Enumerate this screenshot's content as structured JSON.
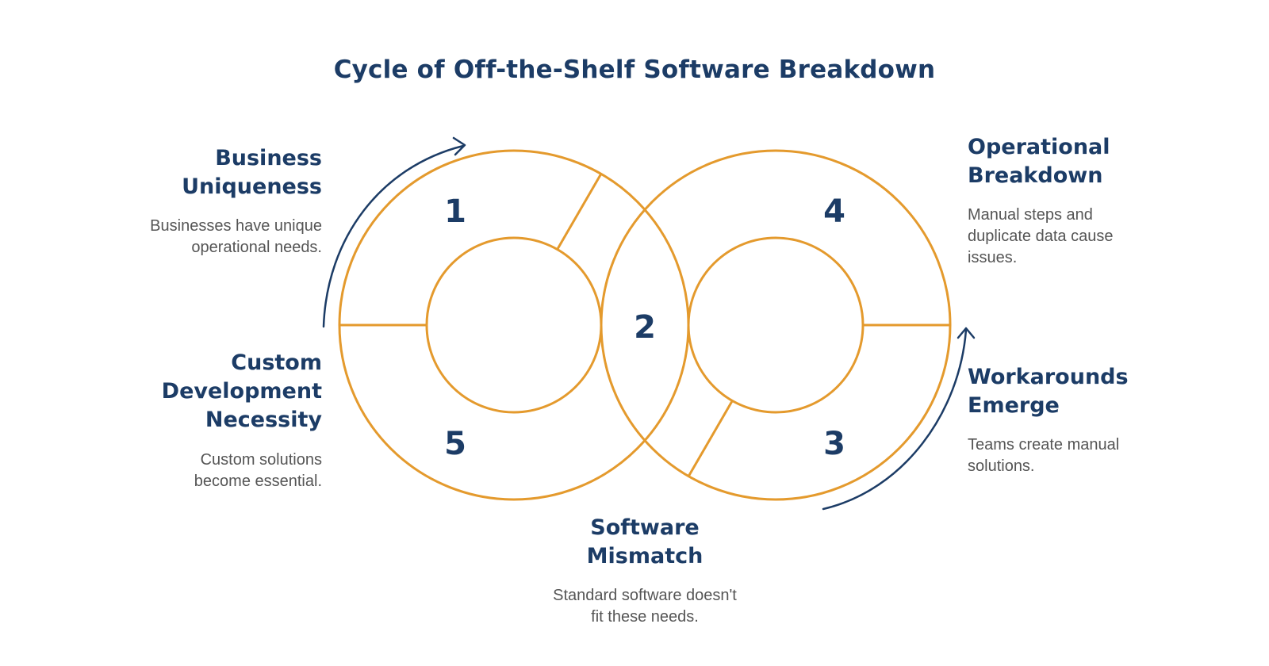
{
  "title": "Cycle of Off-the-Shelf Software Breakdown",
  "colors": {
    "ring": "#e49a2d",
    "text_dark": "#1c3c66",
    "text_body": "#555555",
    "arrow": "#1c3c66"
  },
  "steps": [
    {
      "number": "1",
      "heading": "Business\nUniqueness",
      "description": "Businesses have unique\noperational needs."
    },
    {
      "number": "2",
      "heading": "Software\nMismatch",
      "description": "Standard software doesn't\nfit these needs."
    },
    {
      "number": "3",
      "heading": "Workarounds\nEmerge",
      "description": "Teams create manual\nsolutions."
    },
    {
      "number": "4",
      "heading": "Operational\nBreakdown",
      "description": "Manual steps and\nduplicate data cause\nissues."
    },
    {
      "number": "5",
      "heading": "Custom\nDevelopment\nNecessity",
      "description": "Custom solutions\nbecome essential."
    }
  ],
  "icons": [
    "cycle-arrow-top-left-icon",
    "cycle-arrow-bottom-right-icon"
  ]
}
